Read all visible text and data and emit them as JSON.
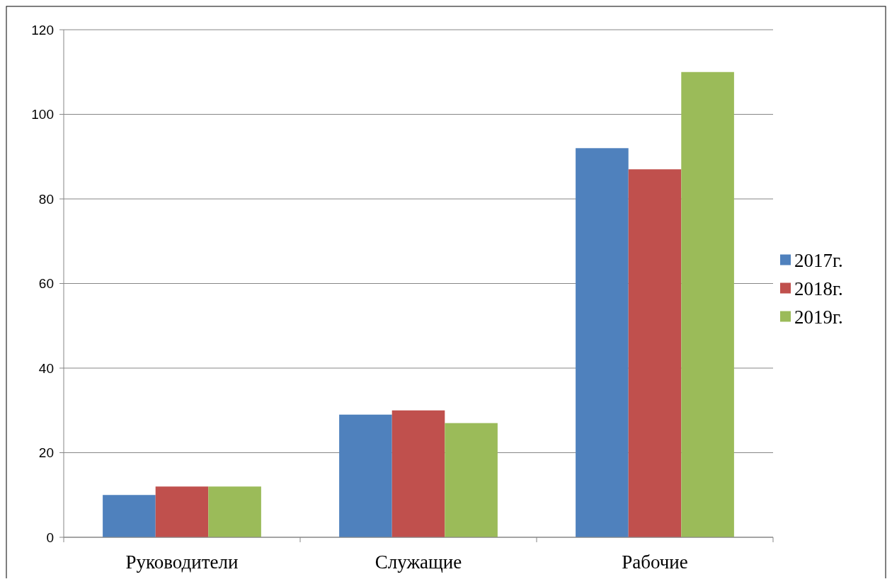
{
  "chart_data": {
    "type": "bar",
    "categories": [
      "Руководители",
      "Служащие",
      "Рабочие"
    ],
    "series": [
      {
        "name": "2017г.",
        "color": "#4f81bd",
        "values": [
          10,
          29,
          92
        ]
      },
      {
        "name": "2018г.",
        "color": "#c0504d",
        "values": [
          12,
          30,
          87
        ]
      },
      {
        "name": "2019г.",
        "color": "#9bbb59",
        "values": [
          12,
          27,
          110
        ]
      }
    ],
    "ylim": [
      0,
      120
    ],
    "yticks": [
      0,
      20,
      40,
      60,
      80,
      100,
      120
    ],
    "grid": "y",
    "legend": "right"
  }
}
